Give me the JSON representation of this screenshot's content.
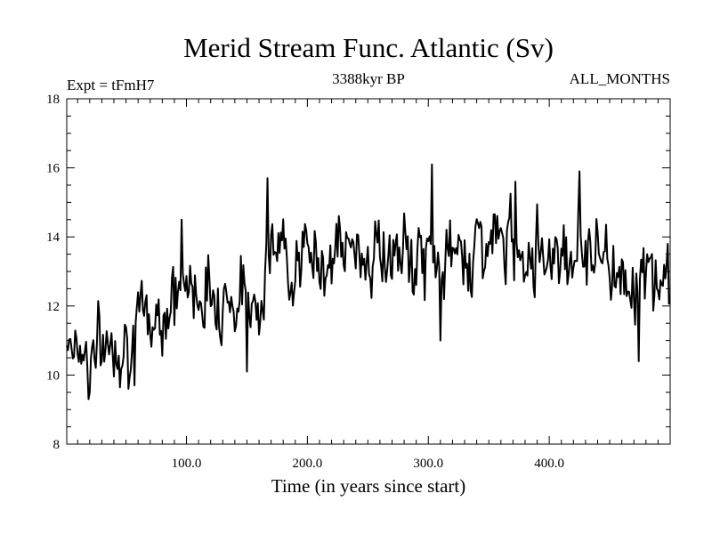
{
  "chart_data": {
    "type": "line",
    "title": "Merid Stream Func. Atlantic (Sv)",
    "experiment_label": "Expt = tFmH7",
    "period_label": "3388kyr BP",
    "season_label": "ALL_MONTHS",
    "xlabel": "Time (in years since start)",
    "ylabel": "",
    "xlim": [
      1,
      500
    ],
    "ylim": [
      8,
      18
    ],
    "x_ticks": [
      100,
      200,
      300,
      400
    ],
    "x_tick_labels": [
      "100.0",
      "200.0",
      "300.0",
      "400.0"
    ],
    "y_ticks": [
      8,
      10,
      12,
      14,
      16,
      18
    ],
    "y_tick_labels": [
      "8",
      "10",
      "12",
      "14",
      "16",
      "18"
    ],
    "series": [
      {
        "name": "Merid Stream Func. Atlantic",
        "color": "#000000",
        "x": [
          1,
          500
        ],
        "trend_points": [
          [
            1,
            11.2
          ],
          [
            20,
            10.6
          ],
          [
            40,
            11.0
          ],
          [
            60,
            11.3
          ],
          [
            80,
            11.9
          ],
          [
            100,
            12.6
          ],
          [
            120,
            12.4
          ],
          [
            140,
            12.2
          ],
          [
            160,
            12.3
          ],
          [
            170,
            13.6
          ],
          [
            200,
            13.3
          ],
          [
            230,
            13.6
          ],
          [
            260,
            13.5
          ],
          [
            290,
            13.3
          ],
          [
            320,
            13.4
          ],
          [
            350,
            13.9
          ],
          [
            380,
            13.7
          ],
          [
            410,
            13.6
          ],
          [
            440,
            13.7
          ],
          [
            460,
            12.9
          ],
          [
            500,
            12.6
          ]
        ],
        "spikes": [
          [
            19,
            9.3
          ],
          [
            52,
            9.6
          ],
          [
            57,
            9.7
          ],
          [
            96,
            14.5
          ],
          [
            150,
            10.1
          ],
          [
            167,
            15.7
          ],
          [
            303,
            16.1
          ],
          [
            310,
            11.0
          ],
          [
            372,
            15.6
          ],
          [
            425,
            15.9
          ],
          [
            474,
            10.4
          ],
          [
            498,
            13.8
          ]
        ],
        "noise_amplitude": 0.75,
        "seed": 7
      }
    ]
  }
}
